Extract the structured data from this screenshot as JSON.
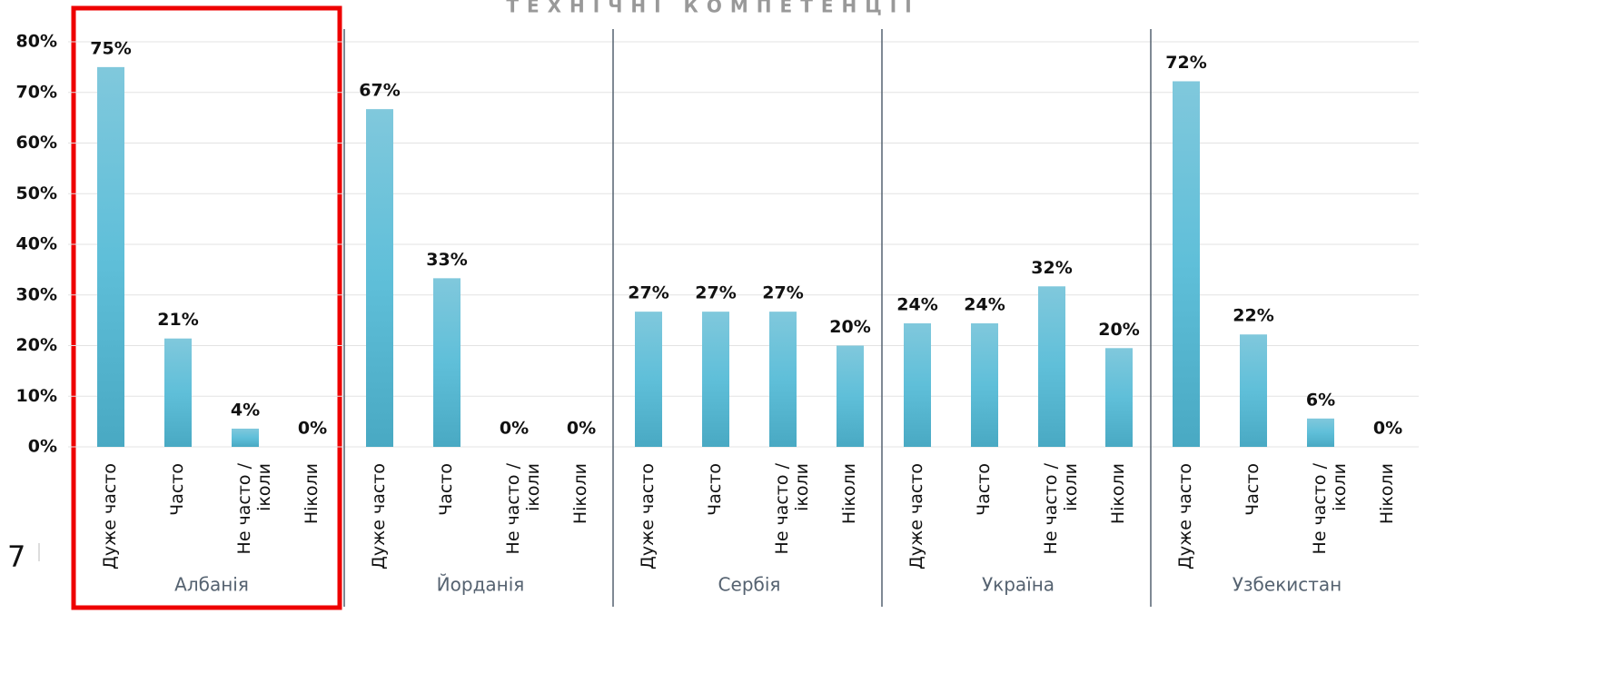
{
  "page_number": "7",
  "chart_data": {
    "type": "grouped-bar",
    "title": "ТЕХНІЧНІ КОМПЕТЕНЦІЇ",
    "color": "#5bbcd6",
    "ylim": [
      0,
      80
    ],
    "yticks": [
      {
        "value": 0,
        "label": "0%"
      },
      {
        "value": 10,
        "label": "10%"
      },
      {
        "value": 20,
        "label": "20%"
      },
      {
        "value": 30,
        "label": "30%"
      },
      {
        "value": 40,
        "label": "40%"
      },
      {
        "value": 50,
        "label": "50%"
      },
      {
        "value": 60,
        "label": "60%"
      },
      {
        "value": 70,
        "label": "70%"
      },
      {
        "value": 80,
        "label": "80%"
      }
    ],
    "grid": true,
    "groups": [
      {
        "name": "Албанія",
        "categories": [
          "Дуже часто",
          "Часто",
          "Не часто /іколи",
          "Ніколи"
        ],
        "values": [
          75,
          21.4,
          3.6,
          0
        ],
        "value_labels": [
          "75%",
          "21%",
          "4%",
          "0%"
        ]
      },
      {
        "name": "Йорданія",
        "categories": [
          "Дуже часто",
          "Часто",
          "Не часто /іколи",
          "Ніколи"
        ],
        "values": [
          66.7,
          33.3,
          0,
          0
        ],
        "value_labels": [
          "67%",
          "33%",
          "0%",
          "0%"
        ]
      },
      {
        "name": "Сербія",
        "categories": [
          "Дуже часто",
          "Часто",
          "Не часто /іколи",
          "Ніколи"
        ],
        "values": [
          26.7,
          26.7,
          26.7,
          20
        ],
        "value_labels": [
          "27%",
          "27%",
          "27%",
          "20%"
        ]
      },
      {
        "name": "Україна",
        "categories": [
          "Дуже часто",
          "Часто",
          "Не часто /іколи",
          "Ніколи"
        ],
        "values": [
          24.4,
          24.4,
          31.7,
          19.5
        ],
        "value_labels": [
          "24%",
          "24%",
          "32%",
          "20%"
        ]
      },
      {
        "name": "Узбекистан",
        "categories": [
          "Дуже часто",
          "Часто",
          "Не часто /іколи",
          "Ніколи"
        ],
        "values": [
          72.2,
          22.2,
          5.6,
          0
        ],
        "value_labels": [
          "72%",
          "22%",
          "6%",
          "0%"
        ]
      }
    ]
  }
}
